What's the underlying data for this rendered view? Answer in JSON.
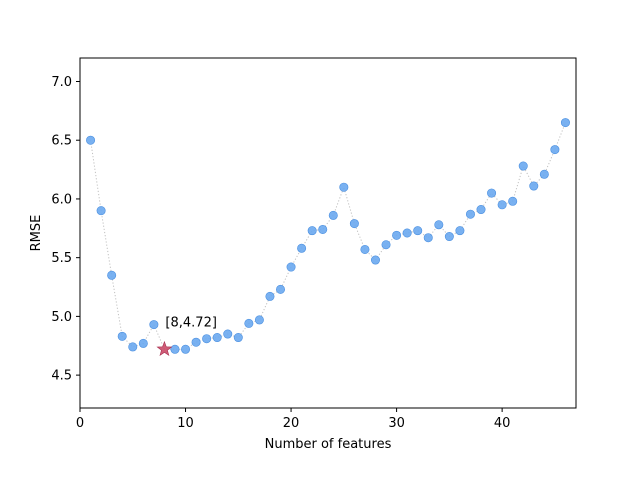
{
  "chart_data": {
    "type": "scatter",
    "xlabel": "Number of features",
    "ylabel": "RMSE",
    "xlim": [
      0,
      47
    ],
    "ylim": [
      4.22,
      7.2
    ],
    "x_ticks": [
      0,
      10,
      20,
      30,
      40
    ],
    "x_tick_labels": [
      "0",
      "10",
      "20",
      "30",
      "40"
    ],
    "y_ticks": [
      4.5,
      5.0,
      5.5,
      6.0,
      6.5,
      7.0
    ],
    "y_tick_labels": [
      "4.5",
      "5.0",
      "5.5",
      "6.0",
      "6.5",
      "7.0"
    ],
    "grid": false,
    "series": [
      {
        "x": [
          1,
          2,
          3,
          4,
          5,
          6,
          7,
          8,
          9,
          10,
          11,
          12,
          13,
          14,
          15,
          16,
          17,
          18,
          19,
          20,
          21,
          22,
          23,
          24,
          25,
          26,
          27,
          28,
          29,
          30,
          31,
          32,
          33,
          34,
          35,
          36,
          37,
          38,
          39,
          40,
          41,
          42,
          43,
          44,
          45,
          46
        ],
        "values": [
          6.5,
          5.9,
          5.35,
          4.83,
          4.74,
          4.77,
          4.93,
          4.72,
          4.72,
          4.72,
          4.78,
          4.81,
          4.82,
          4.85,
          4.82,
          4.94,
          4.97,
          5.17,
          5.23,
          5.42,
          5.58,
          5.73,
          5.74,
          5.86,
          6.1,
          5.79,
          5.57,
          5.48,
          5.61,
          5.69,
          5.71,
          5.73,
          5.67,
          5.78,
          5.68,
          5.73,
          5.87,
          5.91,
          6.05,
          5.95,
          5.98,
          6.28,
          6.11,
          6.21,
          6.42,
          6.65
        ],
        "marker": "circle",
        "color": "#6aa8f0",
        "line_style": "dotted",
        "line_color": "#c0c0c0"
      }
    ],
    "highlight": {
      "x": 8,
      "y": 4.72,
      "marker": "star",
      "color": "#c7405f",
      "label": "[8,4.72]"
    }
  }
}
